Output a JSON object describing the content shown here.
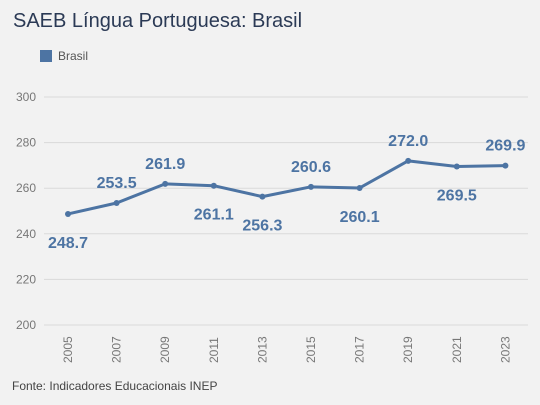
{
  "title": "SAEB Língua Portuguesa: Brasil",
  "source": "Fonte: Indicadores Educacionais INEP",
  "colors": {
    "series": "#4d74a3",
    "grid": "#d9d9d9",
    "background": "#f2f2f2"
  },
  "chart_data": {
    "type": "line",
    "title": "SAEB Língua Portuguesa: Brasil",
    "xlabel": "",
    "ylabel": "",
    "x": [
      "2005",
      "2007",
      "2009",
      "2011",
      "2013",
      "2015",
      "2017",
      "2019",
      "2021",
      "2023"
    ],
    "series": [
      {
        "name": "Brasil",
        "values": [
          248.7,
          253.5,
          261.9,
          261.1,
          256.3,
          260.6,
          260.1,
          272.0,
          269.5,
          269.9
        ],
        "labels": [
          "248.7",
          "253.5",
          "261.9",
          "261.1",
          "256.3",
          "260.6",
          "260.1",
          "272.0",
          "269.5",
          "269.9"
        ],
        "label_positions": [
          "below",
          "above",
          "above",
          "below",
          "below",
          "above",
          "below",
          "above",
          "below",
          "above"
        ]
      }
    ],
    "ylim": [
      200,
      300
    ],
    "yticks": [
      300,
      280,
      260,
      240,
      220,
      200
    ],
    "grid": true,
    "legend": "top-left"
  }
}
